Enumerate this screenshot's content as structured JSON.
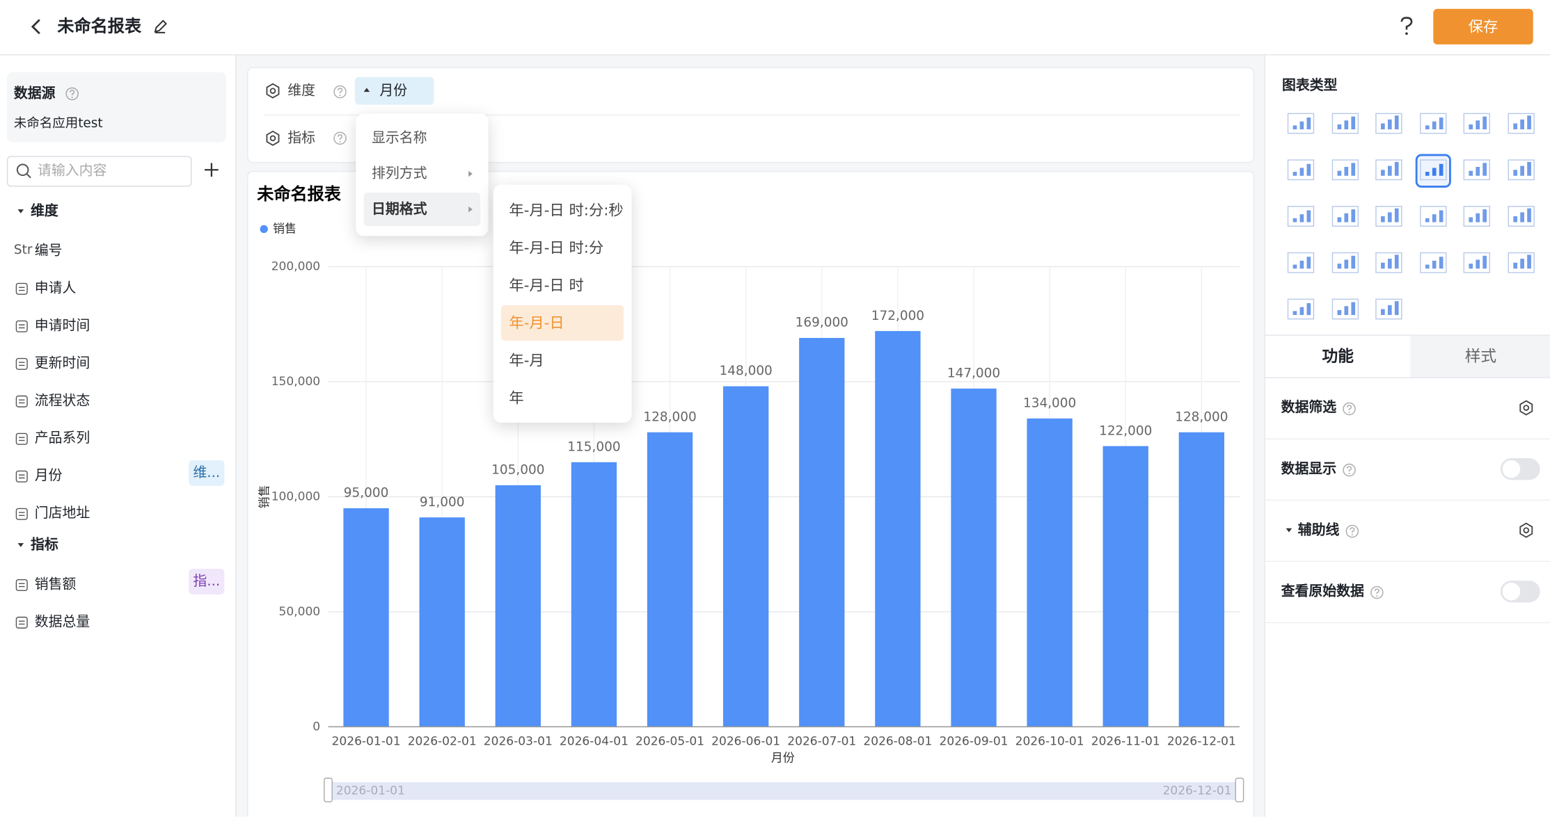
{
  "header": {
    "title": "未命名报表",
    "save": "保存"
  },
  "left_panel": {
    "datasource_title": "数据源",
    "datasource_name": "未命名应用test",
    "search_placeholder": "请输入内容",
    "dimensions_title": "维度",
    "dimensions": [
      {
        "prefix": "Str",
        "label": "编号"
      },
      {
        "label": "申请人"
      },
      {
        "label": "申请时间"
      },
      {
        "label": "更新时间"
      },
      {
        "label": "流程状态"
      },
      {
        "label": "产品系列"
      },
      {
        "label": "月份",
        "tag": "维..."
      },
      {
        "label": "门店地址"
      }
    ],
    "metrics_title": "指标",
    "metrics": [
      {
        "label": "销售额",
        "tag": "指..."
      },
      {
        "label": "数据总量"
      }
    ]
  },
  "config": {
    "dimension_label": "维度",
    "dimension_chip": "月份",
    "metric_label": "指标"
  },
  "dropdown": {
    "items": [
      "显示名称",
      "排列方式",
      "日期格式"
    ],
    "submenu": [
      "年-月-日 时:分:秒",
      "年-月-日 时:分",
      "年-月-日 时",
      "年-月-日",
      "年-月",
      "年"
    ]
  },
  "chart_data": {
    "type": "bar",
    "title": "未命名报表",
    "categories": [
      "2026-01-01",
      "2026-02-01",
      "2026-03-01",
      "2026-04-01",
      "2026-05-01",
      "2026-06-01",
      "2026-07-01",
      "2026-08-01",
      "2026-09-01",
      "2026-10-01",
      "2026-11-01",
      "2026-12-01"
    ],
    "series": [
      {
        "name": "销售",
        "color": "#5191f8",
        "values": [
          95000,
          91000,
          105000,
          115000,
          128000,
          148000,
          169000,
          172000,
          147000,
          134000,
          122000,
          128000
        ],
        "value_labels": [
          "95,000",
          "91,000",
          "105,000",
          "115,000",
          "128,000",
          "148,000",
          "169,000",
          "172,000",
          "147,000",
          "134,000",
          "122,000",
          "128,000"
        ]
      }
    ],
    "x_label": "月份",
    "y_label": "销售",
    "ylim": [
      0,
      200000
    ],
    "yticks": [
      0,
      {
        "value": 50000,
        "label": "50,000"
      },
      {
        "value": 100000,
        "label": "100,000"
      },
      {
        "value": 150000,
        "label": "150,000"
      },
      {
        "value": 200000,
        "label": "200,000"
      }
    ],
    "grid": true,
    "zoom_range": [
      "2026-01-01",
      "2026-12-01"
    ]
  },
  "right_panel": {
    "chart_types_title": "图表类型",
    "tabs": [
      "功能",
      "样式"
    ],
    "rows": [
      "数据筛选",
      "数据显示",
      "辅助线",
      "查看原始数据"
    ]
  }
}
